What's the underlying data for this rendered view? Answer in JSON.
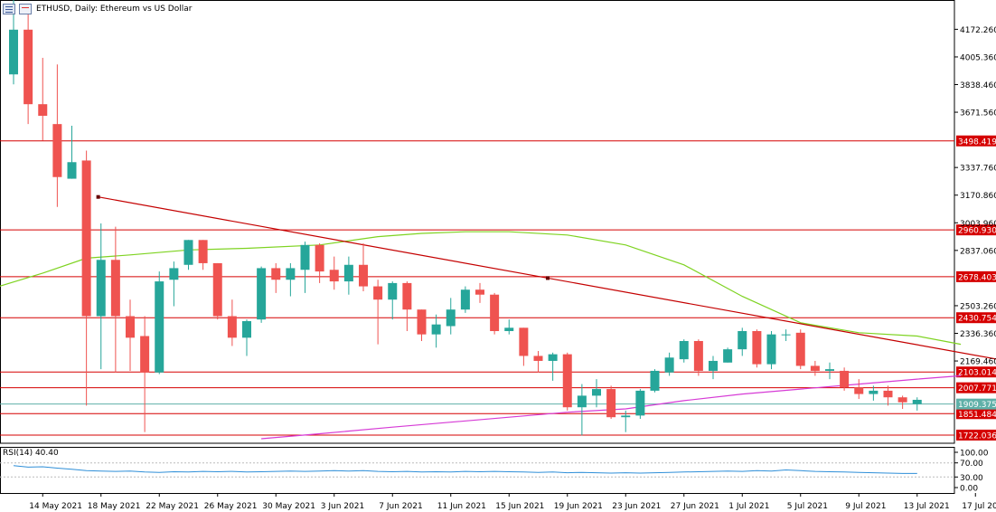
{
  "header": {
    "title": "ETHUSD, Daily:  Ethereum vs US Dollar"
  },
  "rsi": {
    "label": "RSI(14) 40.40",
    "levels": [
      "100.00",
      "70.00",
      "30.00",
      "0.00"
    ]
  },
  "colors": {
    "bull": "#26a69a",
    "bear": "#ef5350",
    "level": "#d50000",
    "trend": "#c40000",
    "ma_green": "#7ed321",
    "ma_magenta": "#d63bd6",
    "rsi_line": "#2f8fd8",
    "current": "#5fb0a8"
  },
  "icons": [
    "bar-chart-icon",
    "calendar-icon"
  ],
  "chart_data": {
    "type": "candlestick",
    "ylim": [
      1700,
      4300
    ],
    "yticks": [
      "4172.260",
      "4005.360",
      "3838.460",
      "3671.560",
      "3337.760",
      "3170.860",
      "3003.960",
      "2837.060",
      "2503.260",
      "2336.360",
      "2169.460"
    ],
    "xticks": [
      "14 May 2021",
      "18 May 2021",
      "22 May 2021",
      "26 May 2021",
      "30 May 2021",
      "3 Jun 2021",
      "7 Jun 2021",
      "11 Jun 2021",
      "15 Jun 2021",
      "19 Jun 2021",
      "23 Jun 2021",
      "27 Jun 2021",
      "1 Jul 2021",
      "5 Jul 2021",
      "9 Jul 2021",
      "13 Jul 2021",
      "17 Jul 2021"
    ],
    "levels": [
      {
        "value": 3498.419,
        "label": "3498.419"
      },
      {
        "value": 2960.93,
        "label": "2960.930"
      },
      {
        "value": 2678.403,
        "label": "2678.403"
      },
      {
        "value": 2430.754,
        "label": "2430.754"
      },
      {
        "value": 2103.014,
        "label": "2103.014"
      },
      {
        "value": 2007.771,
        "label": "2007.771"
      },
      {
        "value": 1851.484,
        "label": "1851.484"
      },
      {
        "value": 1722.036,
        "label": "1722.036"
      }
    ],
    "current_price": {
      "value": 1909.375,
      "label": "1909.375"
    },
    "trendline": {
      "start": [
        "17 May 2021",
        3160
      ],
      "end": [
        "18 Jul 2021",
        2180
      ]
    },
    "candles": [
      {
        "date": "12 May 2021",
        "o": 3900,
        "h": 4380,
        "l": 3840,
        "c": 4170
      },
      {
        "date": "13 May 2021",
        "o": 4170,
        "h": 4300,
        "l": 3600,
        "c": 3720
      },
      {
        "date": "14 May 2021",
        "o": 3720,
        "h": 4000,
        "l": 3500,
        "c": 3650
      },
      {
        "date": "15 May 2021",
        "o": 3600,
        "h": 3960,
        "l": 3100,
        "c": 3280
      },
      {
        "date": "16 May 2021",
        "o": 3270,
        "h": 3590,
        "l": 3270,
        "c": 3370
      },
      {
        "date": "17 May 2021",
        "o": 3380,
        "h": 3440,
        "l": 1900,
        "c": 2440
      },
      {
        "date": "18 May 2021",
        "o": 2440,
        "h": 3000,
        "l": 2120,
        "c": 2780
      },
      {
        "date": "19 May 2021",
        "o": 2780,
        "h": 2980,
        "l": 2100,
        "c": 2440
      },
      {
        "date": "20 May 2021",
        "o": 2440,
        "h": 2540,
        "l": 2110,
        "c": 2310
      },
      {
        "date": "21 May 2021",
        "o": 2320,
        "h": 2440,
        "l": 1740,
        "c": 2100
      },
      {
        "date": "22 May 2021",
        "o": 2100,
        "h": 2710,
        "l": 2090,
        "c": 2650
      },
      {
        "date": "23 May 2021",
        "o": 2660,
        "h": 2770,
        "l": 2500,
        "c": 2730
      },
      {
        "date": "24 May 2021",
        "o": 2750,
        "h": 2900,
        "l": 2720,
        "c": 2900
      },
      {
        "date": "25 May 2021",
        "o": 2900,
        "h": 2900,
        "l": 2720,
        "c": 2760
      },
      {
        "date": "26 May 2021",
        "o": 2760,
        "h": 2760,
        "l": 2420,
        "c": 2440
      },
      {
        "date": "27 May 2021",
        "o": 2440,
        "h": 2540,
        "l": 2260,
        "c": 2310
      },
      {
        "date": "28 May 2021",
        "o": 2310,
        "h": 2420,
        "l": 2200,
        "c": 2410
      },
      {
        "date": "29 May 2021",
        "o": 2420,
        "h": 2740,
        "l": 2400,
        "c": 2730
      },
      {
        "date": "30 May 2021",
        "o": 2730,
        "h": 2760,
        "l": 2580,
        "c": 2660
      },
      {
        "date": "31 May 2021",
        "o": 2660,
        "h": 2760,
        "l": 2560,
        "c": 2730
      },
      {
        "date": "1 Jun 2021",
        "o": 2720,
        "h": 2890,
        "l": 2580,
        "c": 2870
      },
      {
        "date": "2 Jun 2021",
        "o": 2870,
        "h": 2880,
        "l": 2640,
        "c": 2710
      },
      {
        "date": "3 Jun 2021",
        "o": 2720,
        "h": 2800,
        "l": 2600,
        "c": 2650
      },
      {
        "date": "4 Jun 2021",
        "o": 2650,
        "h": 2800,
        "l": 2570,
        "c": 2750
      },
      {
        "date": "5 Jun 2021",
        "o": 2750,
        "h": 2880,
        "l": 2590,
        "c": 2620
      },
      {
        "date": "6 Jun 2021",
        "o": 2620,
        "h": 2660,
        "l": 2270,
        "c": 2540
      },
      {
        "date": "7 Jun 2021",
        "o": 2540,
        "h": 2650,
        "l": 2420,
        "c": 2640
      },
      {
        "date": "8 Jun 2021",
        "o": 2640,
        "h": 2650,
        "l": 2350,
        "c": 2480
      },
      {
        "date": "9 Jun 2021",
        "o": 2480,
        "h": 2480,
        "l": 2290,
        "c": 2330
      },
      {
        "date": "10 Jun 2021",
        "o": 2330,
        "h": 2450,
        "l": 2250,
        "c": 2390
      },
      {
        "date": "11 Jun 2021",
        "o": 2380,
        "h": 2550,
        "l": 2330,
        "c": 2480
      },
      {
        "date": "12 Jun 2021",
        "o": 2480,
        "h": 2620,
        "l": 2460,
        "c": 2600
      },
      {
        "date": "13 Jun 2021",
        "o": 2600,
        "h": 2640,
        "l": 2520,
        "c": 2570
      },
      {
        "date": "14 Jun 2021",
        "o": 2570,
        "h": 2580,
        "l": 2330,
        "c": 2350
      },
      {
        "date": "15 Jun 2021",
        "o": 2350,
        "h": 2420,
        "l": 2330,
        "c": 2370
      },
      {
        "date": "16 Jun 2021",
        "o": 2370,
        "h": 2370,
        "l": 2140,
        "c": 2200
      },
      {
        "date": "17 Jun 2021",
        "o": 2200,
        "h": 2230,
        "l": 2100,
        "c": 2170
      },
      {
        "date": "18 Jun 2021",
        "o": 2170,
        "h": 2220,
        "l": 2050,
        "c": 2210
      },
      {
        "date": "19 Jun 2021",
        "o": 2210,
        "h": 2220,
        "l": 1870,
        "c": 1890
      },
      {
        "date": "20 Jun 2021",
        "o": 1890,
        "h": 2030,
        "l": 1720,
        "c": 1960
      },
      {
        "date": "21 Jun 2021",
        "o": 1960,
        "h": 2060,
        "l": 1890,
        "c": 2000
      },
      {
        "date": "22 Jun 2021",
        "o": 2000,
        "h": 2020,
        "l": 1820,
        "c": 1830
      },
      {
        "date": "23 Jun 2021",
        "o": 1830,
        "h": 1870,
        "l": 1740,
        "c": 1840
      },
      {
        "date": "24 Jun 2021",
        "o": 1840,
        "h": 2000,
        "l": 1820,
        "c": 1990
      },
      {
        "date": "25 Jun 2021",
        "o": 1990,
        "h": 2120,
        "l": 1980,
        "c": 2110
      },
      {
        "date": "26 Jun 2021",
        "o": 2100,
        "h": 2220,
        "l": 2080,
        "c": 2190
      },
      {
        "date": "27 Jun 2021",
        "o": 2180,
        "h": 2300,
        "l": 2160,
        "c": 2290
      },
      {
        "date": "28 Jun 2021",
        "o": 2290,
        "h": 2300,
        "l": 2080,
        "c": 2110
      },
      {
        "date": "29 Jun 2021",
        "o": 2110,
        "h": 2200,
        "l": 2060,
        "c": 2170
      },
      {
        "date": "30 Jun 2021",
        "o": 2160,
        "h": 2250,
        "l": 2160,
        "c": 2240
      },
      {
        "date": "1 Jul 2021",
        "o": 2240,
        "h": 2370,
        "l": 2200,
        "c": 2350
      },
      {
        "date": "2 Jul 2021",
        "o": 2350,
        "h": 2360,
        "l": 2130,
        "c": 2150
      },
      {
        "date": "3 Jul 2021",
        "o": 2150,
        "h": 2350,
        "l": 2120,
        "c": 2330
      },
      {
        "date": "4 Jul 2021",
        "o": 2330,
        "h": 2360,
        "l": 2290,
        "c": 2330
      },
      {
        "date": "5 Jul 2021",
        "o": 2340,
        "h": 2360,
        "l": 2120,
        "c": 2140
      },
      {
        "date": "6 Jul 2021",
        "o": 2140,
        "h": 2170,
        "l": 2080,
        "c": 2110
      },
      {
        "date": "7 Jul 2021",
        "o": 2110,
        "h": 2160,
        "l": 2060,
        "c": 2120
      },
      {
        "date": "8 Jul 2021",
        "o": 2110,
        "h": 2130,
        "l": 1990,
        "c": 2010
      },
      {
        "date": "9 Jul 2021",
        "o": 2010,
        "h": 2060,
        "l": 1940,
        "c": 1970
      },
      {
        "date": "10 Jul 2021",
        "o": 1970,
        "h": 2020,
        "l": 1930,
        "c": 1990
      },
      {
        "date": "11 Jul 2021",
        "o": 1990,
        "h": 2020,
        "l": 1900,
        "c": 1950
      },
      {
        "date": "12 Jul 2021",
        "o": 1950,
        "h": 1960,
        "l": 1880,
        "c": 1920
      },
      {
        "date": "13 Jul 2021",
        "o": 1910,
        "h": 1950,
        "l": 1870,
        "c": 1935
      }
    ],
    "ma_green": {
      "name": "",
      "points": [
        [
          "11 May 2021",
          2620
        ],
        [
          "14 May 2021",
          2700
        ],
        [
          "17 May 2021",
          2790
        ],
        [
          "20 May 2021",
          2810
        ],
        [
          "24 May 2021",
          2840
        ],
        [
          "28 May 2021",
          2850
        ],
        [
          "2 Jun 2021",
          2870
        ],
        [
          "6 Jun 2021",
          2920
        ],
        [
          "9 Jun 2021",
          2940
        ],
        [
          "12 Jun 2021",
          2950
        ],
        [
          "15 Jun 2021",
          2950
        ],
        [
          "19 Jun 2021",
          2930
        ],
        [
          "23 Jun 2021",
          2870
        ],
        [
          "27 Jun 2021",
          2750
        ],
        [
          "1 Jul 2021",
          2560
        ],
        [
          "5 Jul 2021",
          2400
        ],
        [
          "9 Jul 2021",
          2340
        ],
        [
          "13 Jul 2021",
          2320
        ],
        [
          "16 Jul 2021",
          2270
        ]
      ]
    },
    "ma_magenta": {
      "name": "",
      "points": [
        [
          "29 May 2021",
          1700
        ],
        [
          "2 Jun 2021",
          1730
        ],
        [
          "7 Jun 2021",
          1770
        ],
        [
          "11 Jun 2021",
          1800
        ],
        [
          "15 Jun 2021",
          1830
        ],
        [
          "19 Jun 2021",
          1860
        ],
        [
          "23 Jun 2021",
          1880
        ],
        [
          "27 Jun 2021",
          1930
        ],
        [
          "1 Jul 2021",
          1970
        ],
        [
          "5 Jul 2021",
          2000
        ],
        [
          "9 Jul 2021",
          2030
        ],
        [
          "13 Jul 2021",
          2060
        ],
        [
          "16 Jul 2021",
          2080
        ]
      ]
    },
    "rsi_values": [
      62,
      58,
      59,
      55,
      52,
      48,
      47,
      46,
      47,
      44,
      43,
      45,
      44,
      46,
      45,
      46,
      44,
      45,
      46,
      47,
      46,
      47,
      48,
      47,
      48,
      46,
      45,
      46,
      44,
      45,
      44,
      46,
      45,
      46,
      45,
      44,
      43,
      44,
      42,
      43,
      42,
      41,
      42,
      41,
      42,
      43,
      44,
      45,
      46,
      47,
      46,
      48,
      47,
      50,
      48,
      46,
      45,
      44,
      43,
      42,
      41,
      40,
      40
    ]
  }
}
